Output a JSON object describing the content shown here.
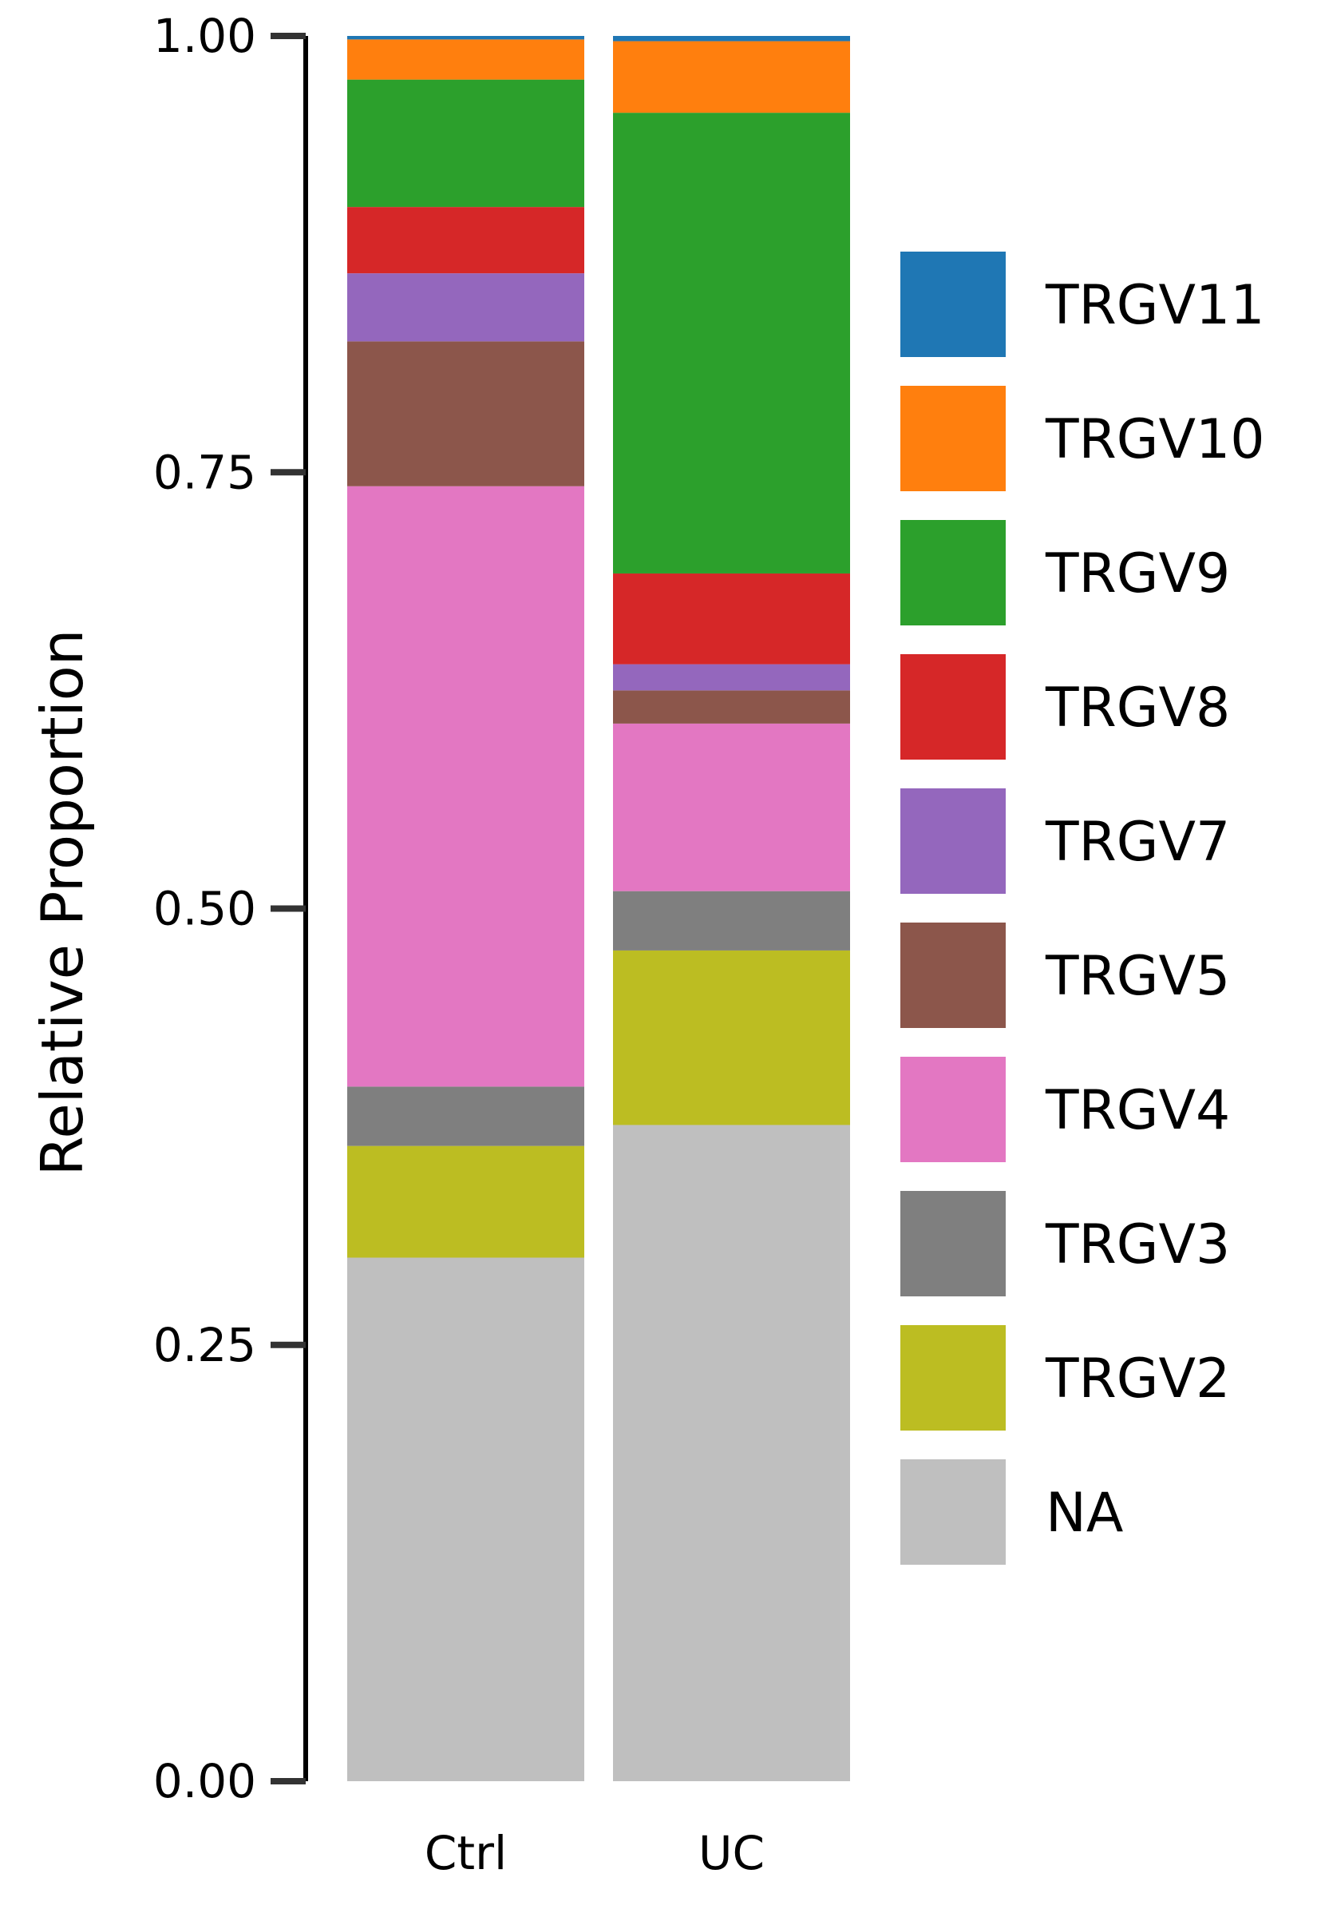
{
  "chart_data": {
    "type": "bar",
    "stacked": true,
    "categories": [
      "Ctrl",
      "UC"
    ],
    "ylabel": "Relative Proportion",
    "xlabel": "",
    "ylim": [
      0,
      1
    ],
    "yticks": [
      "0.00",
      "0.25",
      "0.50",
      "0.75",
      "1.00"
    ],
    "grid": false,
    "legend_position": "right",
    "series": [
      {
        "name": "NA",
        "color": "#bfbfbf",
        "values": [
          0.3,
          0.376
        ]
      },
      {
        "name": "TRGV2",
        "color": "#bcbd22",
        "values": [
          0.064,
          0.1
        ]
      },
      {
        "name": "TRGV3",
        "color": "#7f7f7f",
        "values": [
          0.034,
          0.034
        ]
      },
      {
        "name": "TRGV4",
        "color": "#e377c2",
        "values": [
          0.344,
          0.096
        ]
      },
      {
        "name": "TRGV5",
        "color": "#8c564b",
        "values": [
          0.083,
          0.019
        ]
      },
      {
        "name": "TRGV7",
        "color": "#9467bd",
        "values": [
          0.039,
          0.015
        ]
      },
      {
        "name": "TRGV8",
        "color": "#d62728",
        "values": [
          0.038,
          0.052
        ]
      },
      {
        "name": "TRGV9",
        "color": "#2ca02c",
        "values": [
          0.073,
          0.264
        ]
      },
      {
        "name": "TRGV10",
        "color": "#ff7f0e",
        "values": [
          0.023,
          0.041
        ]
      },
      {
        "name": "TRGV11",
        "color": "#1f77b4",
        "values": [
          0.002,
          0.003
        ]
      }
    ],
    "legend_order": [
      "TRGV11",
      "TRGV10",
      "TRGV9",
      "TRGV8",
      "TRGV7",
      "TRGV5",
      "TRGV4",
      "TRGV3",
      "TRGV2",
      "NA"
    ]
  }
}
